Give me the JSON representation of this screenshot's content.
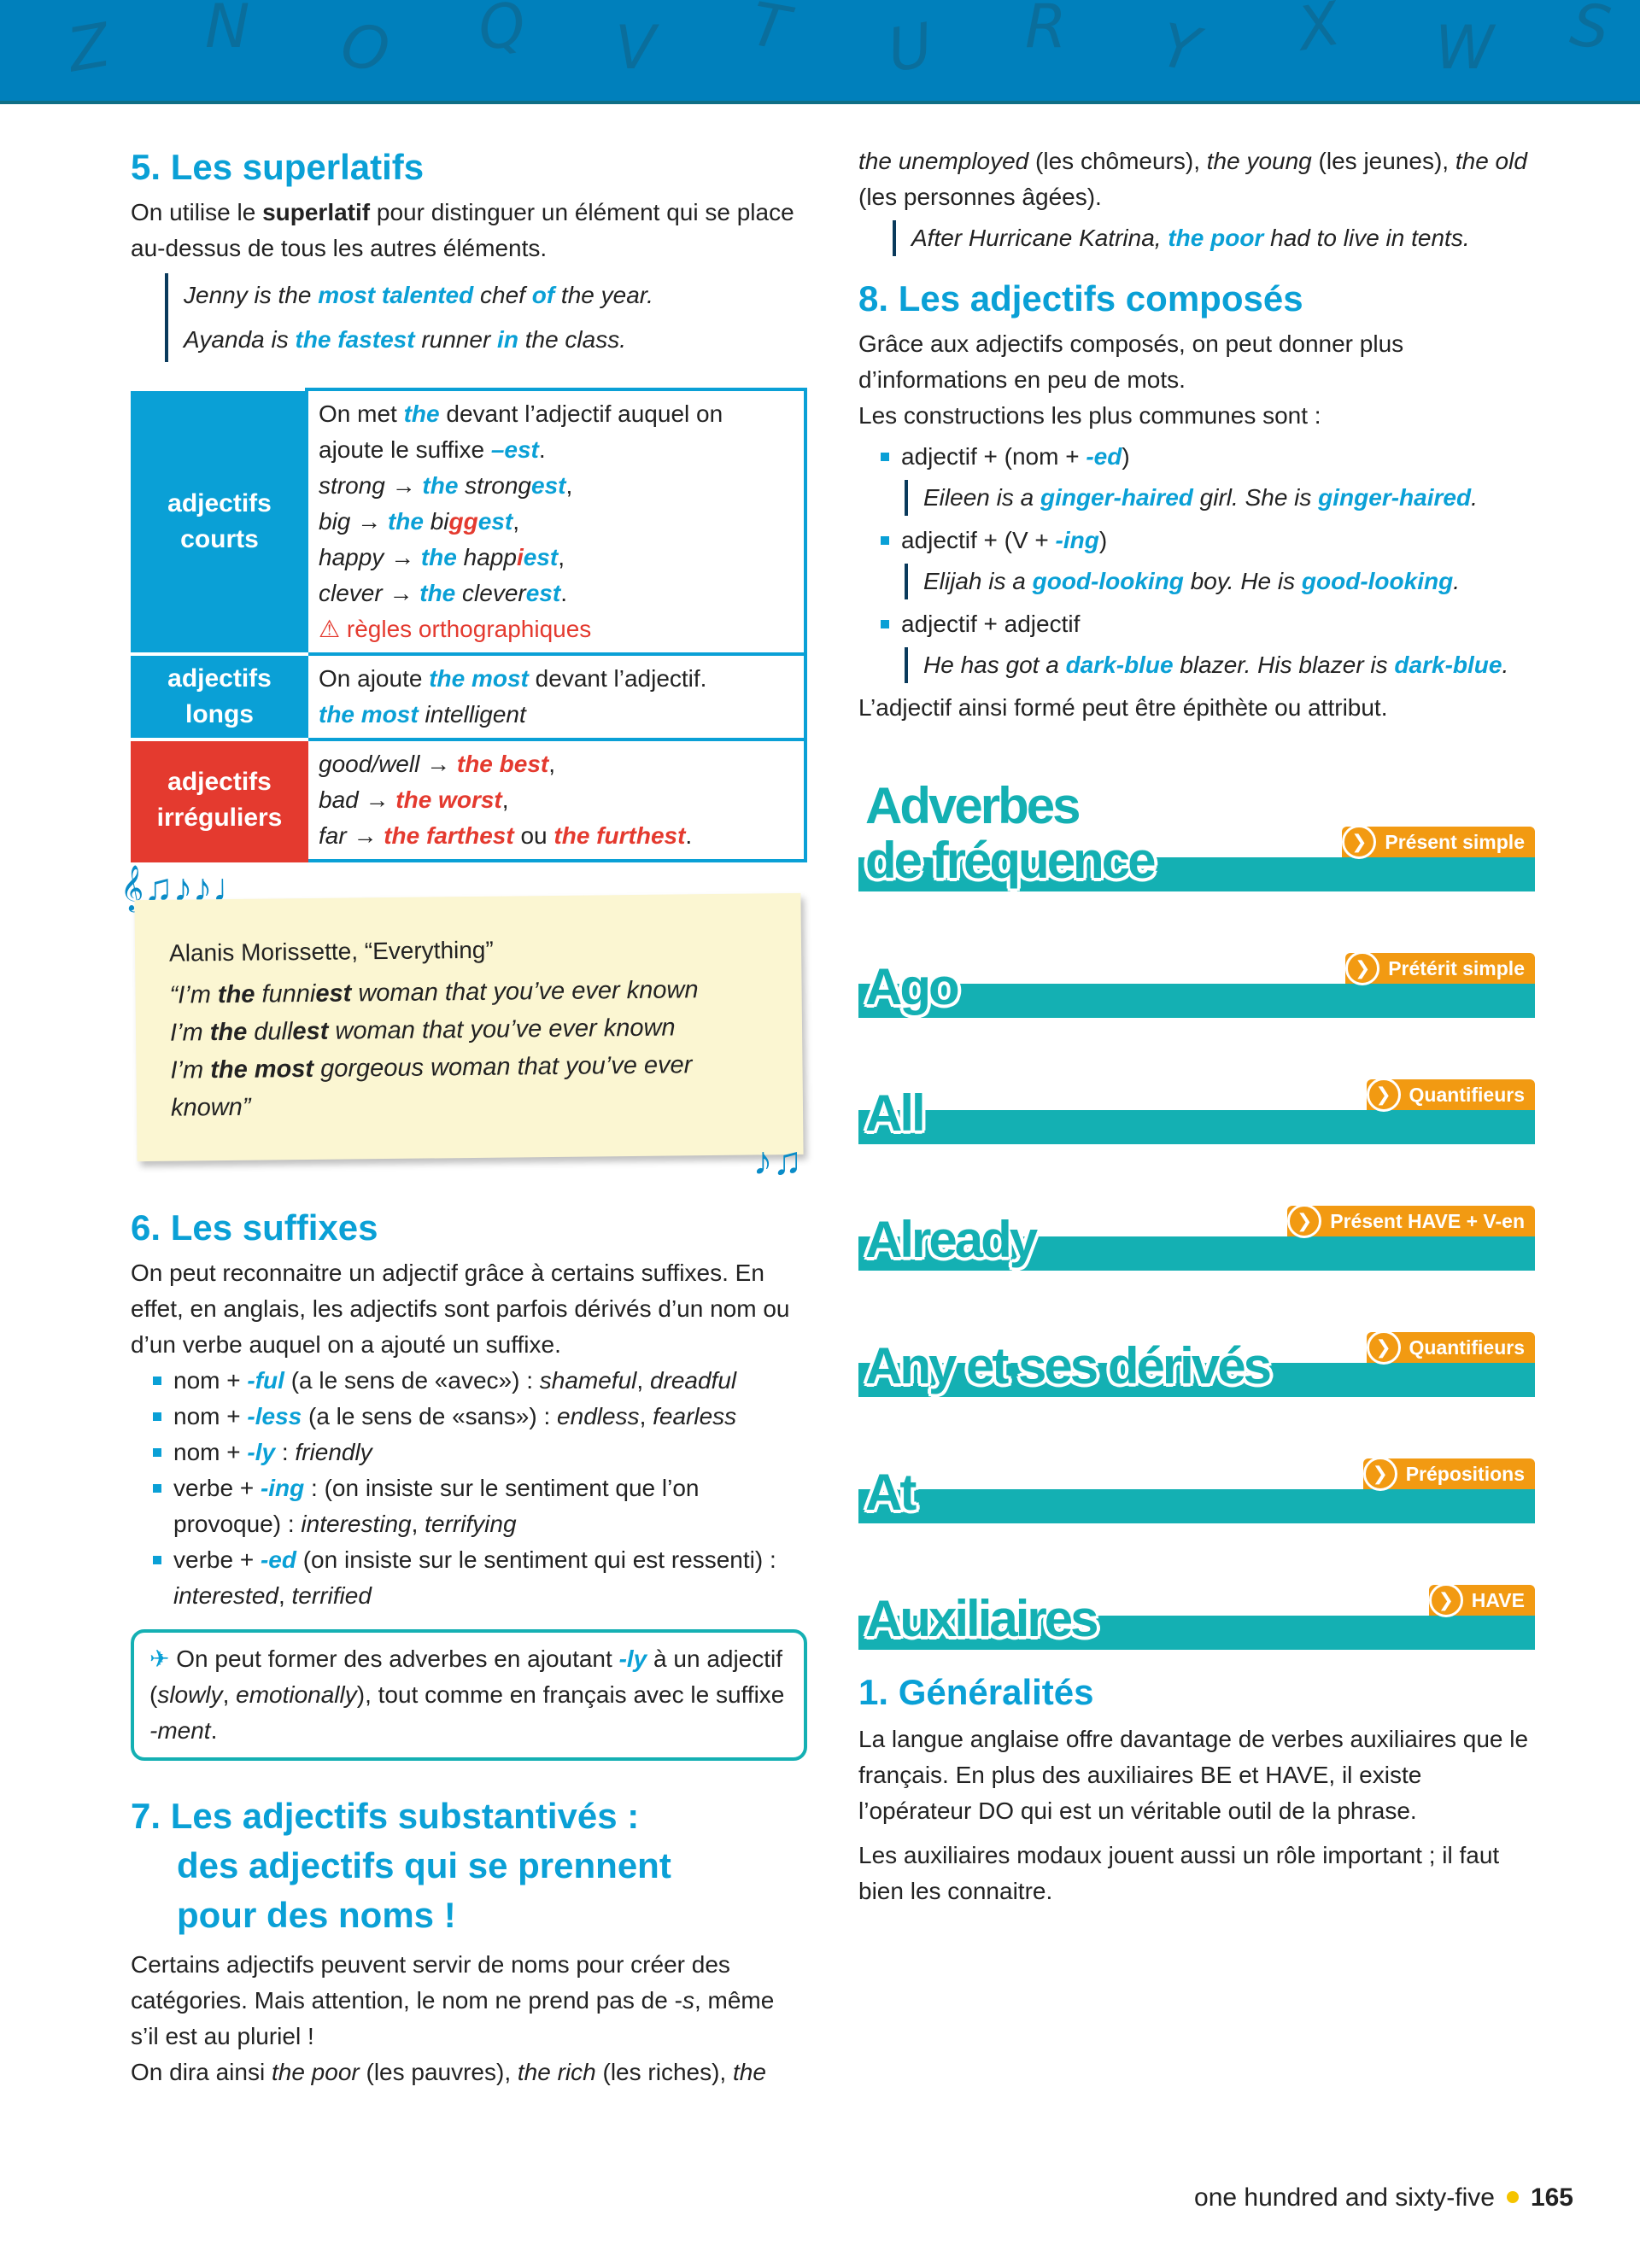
{
  "header": {
    "letters": [
      "Z",
      "N",
      "O",
      "Q",
      "V",
      "T",
      "U",
      "R",
      "Y",
      "X",
      "W",
      "S"
    ]
  },
  "colors": {
    "blue": "#0aa0d6",
    "red": "#e43a2f",
    "teal": "#14b0b3",
    "orange": "#f29a12",
    "header": "#0080bc"
  },
  "s5": {
    "title": "5. Les superlatifs",
    "intro": [
      [
        "On utilise le ",
        ""
      ],
      [
        "superlatif",
        "b"
      ],
      [
        " pour distinguer un élément qui se place au-dessus de tous les autres éléments.",
        ""
      ]
    ],
    "examples": [
      [
        [
          "Jenny is the ",
          "i"
        ],
        [
          "most talented",
          "B"
        ],
        [
          " chef ",
          "i"
        ],
        [
          "of",
          "B"
        ],
        [
          " the year.",
          "i"
        ]
      ],
      [
        [
          "Ayanda is ",
          "i"
        ],
        [
          "the fastest",
          "B"
        ],
        [
          " runner ",
          "i"
        ],
        [
          "in",
          "B"
        ],
        [
          " the class.",
          "i"
        ]
      ]
    ],
    "table": [
      {
        "head": "adjectifs courts",
        "color": "blue",
        "lines": [
          [
            [
              "On met ",
              ""
            ],
            [
              "the",
              "B"
            ],
            [
              " devant l’adjectif auquel on ajoute le suffixe ",
              ""
            ],
            [
              "–est",
              "B"
            ],
            [
              ".",
              ""
            ]
          ],
          [
            [
              "strong → ",
              "i"
            ],
            [
              "the",
              "B"
            ],
            [
              " strong",
              "i"
            ],
            [
              "est",
              "B"
            ],
            [
              ",",
              ""
            ]
          ],
          [
            [
              "big → ",
              "i"
            ],
            [
              "the",
              "B"
            ],
            [
              " bi",
              "i"
            ],
            [
              "gg",
              "R1"
            ],
            [
              "est",
              "B"
            ],
            [
              ",",
              ""
            ]
          ],
          [
            [
              "happy → ",
              "i"
            ],
            [
              "the",
              "B"
            ],
            [
              " happ",
              "i"
            ],
            [
              "i",
              "R1"
            ],
            [
              "est",
              "B"
            ],
            [
              ",",
              ""
            ]
          ],
          [
            [
              "clever → ",
              "i"
            ],
            [
              "the",
              "B"
            ],
            [
              " clever",
              "i"
            ],
            [
              "est",
              "B"
            ],
            [
              ".",
              ""
            ]
          ],
          [
            [
              "⚠ règles orthographiques",
              "W"
            ]
          ]
        ]
      },
      {
        "head": "adjectifs longs",
        "color": "blue",
        "lines": [
          [
            [
              "On ajoute ",
              ""
            ],
            [
              "the most",
              "B"
            ],
            [
              " devant l’adjectif.",
              ""
            ]
          ],
          [
            [
              "the most",
              "B"
            ],
            [
              " intelligent",
              "i"
            ]
          ]
        ]
      },
      {
        "head": "adjectifs irréguliers",
        "color": "red",
        "lines": [
          [
            [
              "good/well → ",
              "i"
            ],
            [
              "the best",
              "R1"
            ],
            [
              ",",
              ""
            ]
          ],
          [
            [
              "bad → ",
              "i"
            ],
            [
              "the worst",
              "R1"
            ],
            [
              ",",
              ""
            ]
          ],
          [
            [
              "far → ",
              "i"
            ],
            [
              "the farthest",
              "R1"
            ],
            [
              " ou ",
              ""
            ],
            [
              "the furthest",
              "R1"
            ],
            [
              ".",
              ""
            ]
          ]
        ]
      }
    ]
  },
  "lyrics": {
    "source": "Alanis Morissette, “Everything”",
    "lines": [
      [
        [
          "“I’m ",
          "i"
        ],
        [
          "the",
          "bi"
        ],
        [
          " funni",
          "i"
        ],
        [
          "est",
          "bi"
        ],
        [
          " woman that you’ve ever known",
          "i"
        ]
      ],
      [
        [
          "I’m ",
          "i"
        ],
        [
          "the",
          "bi"
        ],
        [
          " dull",
          "i"
        ],
        [
          "est",
          "bi"
        ],
        [
          " woman that you’ve ever known",
          "i"
        ]
      ],
      [
        [
          "I’m ",
          "i"
        ],
        [
          "the most",
          "bi"
        ],
        [
          " gorgeous woman that you’ve ever known”",
          "i"
        ]
      ]
    ],
    "notes_top": "𝄞♫♪♪♩",
    "notes_bottom": "♪♫"
  },
  "s6": {
    "title": "6. Les suffixes",
    "intro": [
      [
        "On peut reconnaitre un adjectif grâce à certains suffixes. En effet, en anglais, les adjectifs sont parfois dérivés d’un nom ou d’un verbe auquel on a ajouté un suffixe.",
        ""
      ]
    ],
    "items": [
      [
        [
          "nom + ",
          ""
        ],
        [
          "-ful",
          "B"
        ],
        [
          " (a le sens de «avec») : ",
          ""
        ],
        [
          "shameful",
          "i"
        ],
        [
          ", ",
          ""
        ],
        [
          "dreadful",
          "i"
        ]
      ],
      [
        [
          "nom + ",
          ""
        ],
        [
          "-less",
          "B"
        ],
        [
          " (a le sens de «sans») : ",
          ""
        ],
        [
          "endless",
          "i"
        ],
        [
          ", ",
          ""
        ],
        [
          "fearless",
          "i"
        ]
      ],
      [
        [
          "nom + ",
          ""
        ],
        [
          "-ly",
          "B"
        ],
        [
          " : ",
          ""
        ],
        [
          "friendly",
          "i"
        ]
      ],
      [
        [
          "verbe + ",
          ""
        ],
        [
          "-ing",
          "B"
        ],
        [
          " : (on insiste sur le sentiment que l’on provoque) : ",
          ""
        ],
        [
          "interesting",
          "i"
        ],
        [
          ", ",
          ""
        ],
        [
          "terrifying",
          "i"
        ]
      ],
      [
        [
          "verbe + ",
          ""
        ],
        [
          "-ed",
          "B"
        ],
        [
          " (on insiste sur le sentiment qui est ressenti) : ",
          ""
        ],
        [
          "interested",
          "i"
        ],
        [
          ", ",
          ""
        ],
        [
          "terrified",
          "i"
        ]
      ]
    ],
    "tip": [
      [
        "✈ ",
        "T"
      ],
      [
        "On peut former des adverbes en ajoutant ",
        ""
      ],
      [
        "-ly",
        "B"
      ],
      [
        " à un adjectif (",
        ""
      ],
      [
        "slowly",
        "i"
      ],
      [
        ", ",
        ""
      ],
      [
        "emotionally",
        "i"
      ],
      [
        "), tout comme en français avec le suffixe ",
        ""
      ],
      [
        "-ment",
        "i"
      ],
      [
        ".",
        ""
      ]
    ]
  },
  "s7": {
    "title_lines": [
      "7. Les adjectifs substantivés :",
      "des adjectifs qui se prennent",
      "pour des noms !"
    ],
    "p1": [
      [
        "Certains adjectifs peuvent servir de noms pour créer des catégories. Mais attention, le nom ne prend pas de -",
        ""
      ],
      [
        "s",
        "i"
      ],
      [
        ", même s’il est au pluriel !",
        ""
      ]
    ],
    "p2": [
      [
        "On dira ainsi ",
        ""
      ],
      [
        "the poor",
        "i"
      ],
      [
        " (les pauvres), ",
        ""
      ],
      [
        "the rich",
        "i"
      ],
      [
        " (les riches), ",
        ""
      ],
      [
        "the unemployed",
        "i"
      ],
      [
        " (les chômeurs), ",
        ""
      ],
      [
        "the young",
        "i"
      ],
      [
        " (les jeunes), ",
        ""
      ],
      [
        "the old",
        "i"
      ],
      [
        " (les personnes âgées).",
        ""
      ]
    ],
    "example": [
      [
        "After Hurricane Katrina, ",
        "i"
      ],
      [
        "the poor",
        "B"
      ],
      [
        " had to live in tents.",
        "i"
      ]
    ]
  },
  "s8": {
    "title": "8. Les adjectifs composés",
    "intro": [
      [
        "Grâce aux adjectifs composés, on peut donner plus d’informations en peu de mots.",
        ""
      ]
    ],
    "intro2": [
      [
        "Les constructions les plus communes sont :",
        ""
      ]
    ],
    "items": [
      {
        "rule": [
          [
            "adjectif + (nom + ",
            ""
          ],
          [
            "-ed",
            "B"
          ],
          [
            ")",
            ""
          ]
        ],
        "ex": [
          [
            "Eileen is a ",
            "i"
          ],
          [
            "ginger-haired",
            "B"
          ],
          [
            " girl. She is ",
            "i"
          ],
          [
            "ginger-haired",
            "B"
          ],
          [
            ".",
            ""
          ]
        ]
      },
      {
        "rule": [
          [
            "adjectif + (V + ",
            ""
          ],
          [
            "-ing",
            "B"
          ],
          [
            ")",
            ""
          ]
        ],
        "ex": [
          [
            "Elijah is a ",
            "i"
          ],
          [
            "good-looking",
            "B"
          ],
          [
            " boy. He is ",
            "i"
          ],
          [
            "good-looking",
            "B"
          ],
          [
            ".",
            ""
          ]
        ]
      },
      {
        "rule": [
          [
            "adjectif + adjectif",
            ""
          ]
        ],
        "ex": [
          [
            "He has got a ",
            "i"
          ],
          [
            "dark-blue",
            "B"
          ],
          [
            " blazer. His blazer is ",
            "i"
          ],
          [
            "dark-blue",
            "B"
          ],
          [
            ".",
            ""
          ]
        ]
      }
    ],
    "outro": [
      [
        "L’adjectif ainsi formé peut être épithète ou attribut.",
        ""
      ]
    ]
  },
  "entries": [
    {
      "title": "Adverbes\nde fréquence",
      "link": "Présent simple"
    },
    {
      "title": "Ago",
      "link": "Prétérit simple"
    },
    {
      "title": "All",
      "link": "Quantifieurs"
    },
    {
      "title": "Already",
      "link": "Présent HAVE + V-en"
    },
    {
      "title": "Any et ses dérivés",
      "link": "Quantifieurs"
    },
    {
      "title": "At",
      "link": "Prépositions"
    },
    {
      "title": "Auxiliaires",
      "link": "HAVE"
    }
  ],
  "aux": {
    "title": "1. Généralités",
    "p1": [
      [
        "La langue anglaise offre davantage de verbes auxiliaires que le français. En plus des auxiliaires BE et HAVE, il existe l’opérateur DO qui est un véritable outil de la phrase.",
        ""
      ]
    ],
    "p2": [
      [
        "Les auxiliaires modaux jouent aussi un rôle important ; il faut bien les connaitre.",
        ""
      ]
    ]
  },
  "footer": {
    "words": "one hundred and sixty-five",
    "number": "165"
  }
}
